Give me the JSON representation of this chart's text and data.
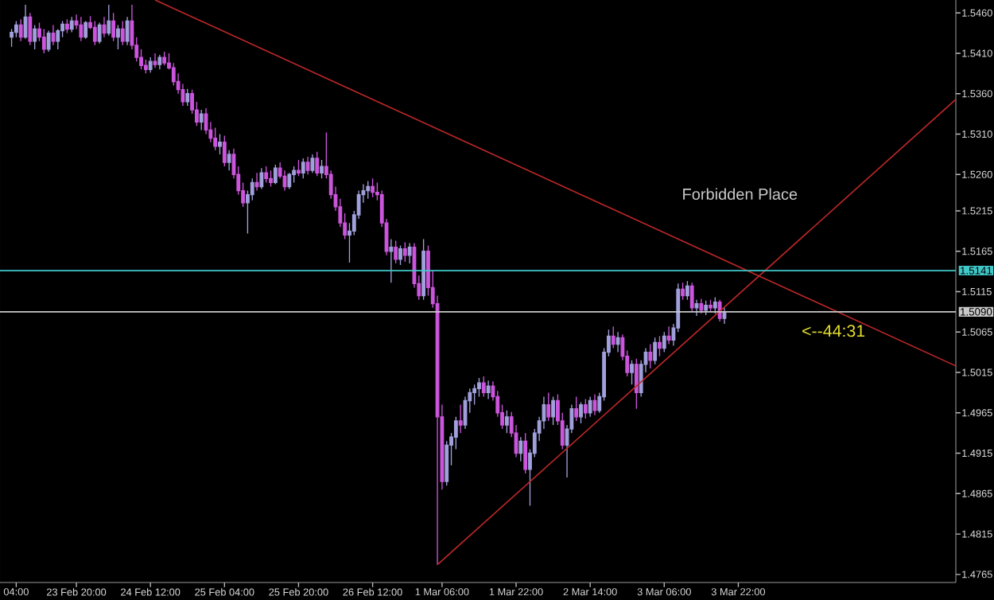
{
  "chart_data": {
    "type": "candlestick",
    "categories": [
      null,
      "04:00",
      null,
      null,
      null,
      null,
      null,
      null,
      null,
      null,
      null,
      null,
      null,
      null,
      "23 Feb 20:00",
      null,
      null,
      null,
      null,
      null,
      null,
      null,
      null,
      null,
      null,
      null,
      null,
      null,
      null,
      null,
      "24 Feb 12:00",
      null,
      null,
      null,
      null,
      null,
      null,
      null,
      null,
      null,
      null,
      null,
      null,
      null,
      null,
      null,
      "25 Feb 04:00",
      null,
      null,
      null,
      null,
      null,
      null,
      null,
      null,
      null,
      null,
      null,
      null,
      null,
      null,
      null,
      "25 Feb 20:00",
      null,
      null,
      null,
      null,
      null,
      null,
      null,
      null,
      null,
      null,
      null,
      null,
      null,
      null,
      null,
      "26 Feb 12:00",
      null,
      null,
      null,
      null,
      null,
      null,
      null,
      null,
      null,
      null,
      null,
      null,
      null,
      null,
      "1 Mar 06:00",
      null,
      null,
      null,
      null,
      null,
      null,
      null,
      null,
      null,
      null,
      null,
      null,
      null,
      null,
      null,
      "1 Mar 22:00",
      null,
      null,
      null,
      null,
      null,
      null,
      null,
      null,
      null,
      null,
      null,
      null,
      null,
      null,
      null,
      "2 Mar 14:00",
      null,
      null,
      null,
      null,
      null,
      null,
      null,
      null,
      null,
      null,
      null,
      null,
      null,
      null,
      null,
      "3 Mar 06:00",
      null,
      null,
      null,
      null,
      null,
      null,
      null,
      null,
      null,
      null,
      null,
      null,
      null,
      null,
      null,
      "3 Mar 22:00",
      null,
      null,
      null,
      null,
      null,
      null,
      null,
      null,
      null,
      null,
      null,
      null,
      null,
      null,
      null,
      null,
      null,
      null,
      null,
      null,
      null,
      null,
      null,
      null,
      null,
      null,
      null,
      null,
      null,
      null,
      null,
      null,
      null,
      null,
      null,
      null,
      null,
      null,
      null,
      null,
      null,
      null,
      null,
      null,
      null,
      null,
      null
    ],
    "ylim": [
      1.4755,
      1.5476
    ],
    "yticks": [
      {
        "value": 1.4765,
        "label": "1.4765"
      },
      {
        "value": 1.4815,
        "label": "1.4815"
      },
      {
        "value": 1.4865,
        "label": "1.4865"
      },
      {
        "value": 1.4915,
        "label": "1.4915"
      },
      {
        "value": 1.4965,
        "label": "1.4965"
      },
      {
        "value": 1.5015,
        "label": "1.5015"
      },
      {
        "value": 1.5065,
        "label": "1.5065"
      },
      {
        "value": 1.5115,
        "label": "1.5115"
      },
      {
        "value": 1.5165,
        "label": "1.5165"
      },
      {
        "value": 1.5215,
        "label": "1.5215"
      },
      {
        "value": 1.526,
        "label": "1.5260"
      },
      {
        "value": 1.531,
        "label": "1.5310"
      },
      {
        "value": 1.536,
        "label": "1.5360"
      },
      {
        "value": 1.541,
        "label": "1.5410"
      },
      {
        "value": 1.546,
        "label": "1.5460"
      }
    ],
    "series": [
      {
        "ohlc": [
          [
            1.543,
            1.544,
            1.5418,
            1.5436
          ],
          [
            1.5436,
            1.545,
            1.543,
            1.5445
          ],
          [
            1.5445,
            1.5452,
            1.5425,
            1.543
          ],
          [
            1.543,
            1.547,
            1.5428,
            1.5455
          ],
          [
            1.5455,
            1.546,
            1.542,
            1.5425
          ],
          [
            1.5425,
            1.5445,
            1.5415,
            1.544
          ],
          [
            1.544,
            1.5448,
            1.5425,
            1.543
          ],
          [
            1.543,
            1.544,
            1.541,
            1.5415
          ],
          [
            1.5415,
            1.5438,
            1.5412,
            1.5435
          ],
          [
            1.5435,
            1.5445,
            1.542,
            1.5425
          ],
          [
            1.5425,
            1.544,
            1.5415,
            1.5438
          ],
          [
            1.5438,
            1.545,
            1.543,
            1.5446
          ],
          [
            1.5446,
            1.5452,
            1.5435,
            1.544
          ],
          [
            1.544,
            1.5455,
            1.5436,
            1.545
          ],
          [
            1.545,
            1.5458,
            1.544,
            1.5445
          ],
          [
            1.5445,
            1.5455,
            1.5425,
            1.543
          ],
          [
            1.543,
            1.545,
            1.5428,
            1.5448
          ],
          [
            1.5448,
            1.5456,
            1.544,
            1.5442
          ],
          [
            1.5442,
            1.545,
            1.542,
            1.5425
          ],
          [
            1.5425,
            1.5448,
            1.5422,
            1.5445
          ],
          [
            1.5445,
            1.5455,
            1.543,
            1.5435
          ],
          [
            1.5435,
            1.547,
            1.5432,
            1.545
          ],
          [
            1.545,
            1.546,
            1.5425,
            1.543
          ],
          [
            1.543,
            1.5445,
            1.5415,
            1.544
          ],
          [
            1.544,
            1.545,
            1.542,
            1.5425
          ],
          [
            1.5425,
            1.5455,
            1.542,
            1.545
          ],
          [
            1.545,
            1.547,
            1.5415,
            1.542
          ],
          [
            1.542,
            1.543,
            1.54,
            1.5405
          ],
          [
            1.5405,
            1.5415,
            1.539,
            1.5395
          ],
          [
            1.5395,
            1.5402,
            1.5385,
            1.539
          ],
          [
            1.539,
            1.5405,
            1.5386,
            1.54
          ],
          [
            1.54,
            1.541,
            1.5392,
            1.5396
          ],
          [
            1.5396,
            1.5408,
            1.539,
            1.5405
          ],
          [
            1.5405,
            1.5412,
            1.5395,
            1.5398
          ],
          [
            1.5398,
            1.541,
            1.539,
            1.5392
          ],
          [
            1.5392,
            1.5398,
            1.537,
            1.5375
          ],
          [
            1.5375,
            1.5385,
            1.536,
            1.5365
          ],
          [
            1.5365,
            1.5372,
            1.5345,
            1.535
          ],
          [
            1.535,
            1.5366,
            1.5345,
            1.536
          ],
          [
            1.536,
            1.5365,
            1.5335,
            1.534
          ],
          [
            1.534,
            1.535,
            1.532,
            1.5325
          ],
          [
            1.5325,
            1.534,
            1.5315,
            1.5335
          ],
          [
            1.5335,
            1.5342,
            1.531,
            1.5315
          ],
          [
            1.5315,
            1.5325,
            1.53,
            1.5305
          ],
          [
            1.5305,
            1.5318,
            1.529,
            1.5295
          ],
          [
            1.5295,
            1.531,
            1.5285,
            1.53
          ],
          [
            1.53,
            1.5308,
            1.527,
            1.5275
          ],
          [
            1.5275,
            1.529,
            1.5265,
            1.5285
          ],
          [
            1.5285,
            1.5292,
            1.5255,
            1.526
          ],
          [
            1.526,
            1.527,
            1.5235,
            1.524
          ],
          [
            1.524,
            1.525,
            1.522,
            1.5225
          ],
          [
            1.5225,
            1.524,
            1.5187,
            1.5235
          ],
          [
            1.5235,
            1.5255,
            1.5228,
            1.525
          ],
          [
            1.525,
            1.5262,
            1.524,
            1.5245
          ],
          [
            1.5245,
            1.5268,
            1.5242,
            1.5262
          ],
          [
            1.5262,
            1.527,
            1.525,
            1.5255
          ],
          [
            1.5255,
            1.5265,
            1.5245,
            1.525
          ],
          [
            1.525,
            1.5272,
            1.5248,
            1.5268
          ],
          [
            1.5268,
            1.5275,
            1.5255,
            1.5258
          ],
          [
            1.5258,
            1.5265,
            1.524,
            1.5245
          ],
          [
            1.5245,
            1.5262,
            1.5242,
            1.526
          ],
          [
            1.526,
            1.527,
            1.525,
            1.5265
          ],
          [
            1.5265,
            1.5278,
            1.5258,
            1.5262
          ],
          [
            1.5262,
            1.528,
            1.5255,
            1.5275
          ],
          [
            1.5275,
            1.5282,
            1.526,
            1.5265
          ],
          [
            1.5265,
            1.5285,
            1.5262,
            1.528
          ],
          [
            1.528,
            1.5288,
            1.5258,
            1.5262
          ],
          [
            1.5262,
            1.5278,
            1.5255,
            1.527
          ],
          [
            1.527,
            1.5312,
            1.5255,
            1.526
          ],
          [
            1.526,
            1.5265,
            1.523,
            1.5235
          ],
          [
            1.5235,
            1.5245,
            1.5215,
            1.522
          ],
          [
            1.522,
            1.523,
            1.5195,
            1.52
          ],
          [
            1.52,
            1.5212,
            1.518,
            1.5185
          ],
          [
            1.5185,
            1.52,
            1.5151,
            1.519
          ],
          [
            1.519,
            1.5215,
            1.5185,
            1.521
          ],
          [
            1.521,
            1.524,
            1.5205,
            1.5235
          ],
          [
            1.5235,
            1.5248,
            1.5225,
            1.524
          ],
          [
            1.524,
            1.5252,
            1.523,
            1.5245
          ],
          [
            1.5245,
            1.5255,
            1.5232,
            1.5238
          ],
          [
            1.5238,
            1.525,
            1.5228,
            1.5235
          ],
          [
            1.5235,
            1.524,
            1.5195,
            1.52
          ],
          [
            1.52,
            1.5205,
            1.516,
            1.5165
          ],
          [
            1.5165,
            1.518,
            1.5126,
            1.517
          ],
          [
            1.517,
            1.5178,
            1.515,
            1.5155
          ],
          [
            1.5155,
            1.5172,
            1.5148,
            1.5168
          ],
          [
            1.5168,
            1.5176,
            1.5152,
            1.516
          ],
          [
            1.516,
            1.5175,
            1.515,
            1.517
          ],
          [
            1.517,
            1.5175,
            1.512,
            1.5125
          ],
          [
            1.5125,
            1.5135,
            1.5105,
            1.511
          ],
          [
            1.511,
            1.518,
            1.5105,
            1.5165
          ],
          [
            1.5165,
            1.5172,
            1.511,
            1.512
          ],
          [
            1.512,
            1.514,
            1.5095,
            1.51
          ],
          [
            1.51,
            1.511,
            1.4777,
            1.496
          ],
          [
            1.496,
            1.4975,
            1.487,
            1.488
          ],
          [
            1.488,
            1.493,
            1.4875,
            1.4925
          ],
          [
            1.4925,
            1.494,
            1.49,
            1.4935
          ],
          [
            1.4935,
            1.496,
            1.492,
            1.4955
          ],
          [
            1.4955,
            1.4975,
            1.494,
            1.495
          ],
          [
            1.495,
            1.4985,
            1.4945,
            1.498
          ],
          [
            1.498,
            1.4995,
            1.4965,
            1.499
          ],
          [
            1.499,
            1.5,
            1.4975,
            1.4995
          ],
          [
            1.4995,
            1.5008,
            1.4985,
            1.5002
          ],
          [
            1.5002,
            1.501,
            1.4985,
            1.499
          ],
          [
            1.499,
            1.5005,
            1.4982,
            1.4998
          ],
          [
            1.4998,
            1.5004,
            1.498,
            1.4985
          ],
          [
            1.4985,
            1.4992,
            1.496,
            1.4965
          ],
          [
            1.4965,
            1.4975,
            1.4945,
            1.495
          ],
          [
            1.495,
            1.4968,
            1.494,
            1.496
          ],
          [
            1.496,
            1.4966,
            1.4935,
            1.494
          ],
          [
            1.494,
            1.495,
            1.491,
            1.4915
          ],
          [
            1.4915,
            1.4935,
            1.4905,
            1.493
          ],
          [
            1.493,
            1.494,
            1.489,
            1.4895
          ],
          [
            1.4895,
            1.492,
            1.485,
            1.4915
          ],
          [
            1.4915,
            1.4945,
            1.491,
            1.494
          ],
          [
            1.494,
            1.496,
            1.493,
            1.4955
          ],
          [
            1.4955,
            1.4985,
            1.4945,
            1.4975
          ],
          [
            1.4975,
            1.499,
            1.4955,
            1.496
          ],
          [
            1.496,
            1.4985,
            1.495,
            1.498
          ],
          [
            1.498,
            1.4988,
            1.495,
            1.4955
          ],
          [
            1.4955,
            1.4965,
            1.492,
            1.4925
          ],
          [
            1.4925,
            1.495,
            1.4885,
            1.4945
          ],
          [
            1.4945,
            1.4975,
            1.494,
            1.497
          ],
          [
            1.497,
            1.4985,
            1.4955,
            1.496
          ],
          [
            1.496,
            1.4978,
            1.4952,
            1.4975
          ],
          [
            1.4975,
            1.4982,
            1.4958,
            1.4965
          ],
          [
            1.4965,
            1.4985,
            1.496,
            1.498
          ],
          [
            1.498,
            1.4988,
            1.4962,
            1.4968
          ],
          [
            1.4968,
            1.499,
            1.4965,
            1.4985
          ],
          [
            1.4985,
            1.5045,
            1.498,
            1.504
          ],
          [
            1.504,
            1.5068,
            1.5035,
            1.506
          ],
          [
            1.506,
            1.5072,
            1.5045,
            1.505
          ],
          [
            1.505,
            1.5065,
            1.504,
            1.5058
          ],
          [
            1.5058,
            1.5062,
            1.503,
            1.5035
          ],
          [
            1.5035,
            1.5042,
            1.501,
            1.5015
          ],
          [
            1.5015,
            1.503,
            1.5,
            1.5025
          ],
          [
            1.5025,
            1.5032,
            1.497,
            1.499
          ],
          [
            1.499,
            1.503,
            1.4985,
            1.5025
          ],
          [
            1.5025,
            1.5045,
            1.5015,
            1.504
          ],
          [
            1.504,
            1.505,
            1.502,
            1.503
          ],
          [
            1.503,
            1.5058,
            1.5025,
            1.5052
          ],
          [
            1.5052,
            1.506,
            1.5035,
            1.5045
          ],
          [
            1.5045,
            1.5065,
            1.504,
            1.506
          ],
          [
            1.506,
            1.5072,
            1.505,
            1.5055
          ],
          [
            1.5055,
            1.5075,
            1.5048,
            1.507
          ],
          [
            1.507,
            1.5125,
            1.5065,
            1.5118
          ],
          [
            1.5118,
            1.5126,
            1.5105,
            1.511
          ],
          [
            1.511,
            1.5128,
            1.5105,
            1.5122
          ],
          [
            1.5122,
            1.5126,
            1.509,
            1.5095
          ],
          [
            1.5095,
            1.5105,
            1.5085,
            1.51
          ],
          [
            1.51,
            1.5106,
            1.5088,
            1.5092
          ],
          [
            1.5092,
            1.5104,
            1.5086,
            1.5098
          ],
          [
            1.5098,
            1.5105,
            1.509,
            1.5095
          ],
          [
            1.5095,
            1.5108,
            1.5088,
            1.5102
          ],
          [
            1.5102,
            1.5105,
            1.5078,
            1.5082
          ],
          [
            1.5082,
            1.5095,
            1.5075,
            1.509
          ],
          null,
          null,
          null,
          null,
          null,
          null,
          null,
          null,
          null,
          null,
          null,
          null,
          null,
          null,
          null,
          null,
          null,
          null,
          null,
          null,
          null,
          null,
          null,
          null,
          null,
          null,
          null,
          null,
          null,
          null,
          null,
          null,
          null,
          null,
          null,
          null,
          null,
          null,
          null,
          null,
          null,
          null,
          null,
          null,
          null,
          null,
          null,
          null,
          null,
          null
        ],
        "colors": [
          "#a0a0dc",
          "#a0a0dc",
          "#cc55dd",
          "#a0a0dc",
          "#cc55dd",
          "#a0a0dc",
          "#cc55dd",
          "#cc55dd",
          "#a0a0dc",
          "#cc55dd",
          "#a0a0dc",
          "#a0a0dc",
          "#cc55dd",
          "#a0a0dc",
          "#cc55dd",
          "#cc55dd",
          "#a0a0dc",
          "#cc55dd",
          "#cc55dd",
          "#a0a0dc",
          "#cc55dd",
          "#a0a0dc",
          "#cc55dd",
          "#a0a0dc",
          "#cc55dd",
          "#a0a0dc",
          "#cc55dd",
          "#cc55dd",
          "#cc55dd",
          "#cc55dd",
          "#a0a0dc",
          "#cc55dd",
          "#a0a0dc",
          "#cc55dd",
          "#cc55dd",
          "#cc55dd",
          "#cc55dd",
          "#cc55dd",
          "#a0a0dc",
          "#cc55dd",
          "#cc55dd",
          "#a0a0dc",
          "#cc55dd",
          "#cc55dd",
          "#cc55dd",
          "#a0a0dc",
          "#cc55dd",
          "#a0a0dc",
          "#cc55dd",
          "#cc55dd",
          "#cc55dd",
          "#a0a0dc",
          "#a0a0dc",
          "#cc55dd",
          "#a0a0dc",
          "#cc55dd",
          "#cc55dd",
          "#a0a0dc",
          "#cc55dd",
          "#cc55dd",
          "#a0a0dc",
          "#a0a0dc",
          "#cc55dd",
          "#a0a0dc",
          "#cc55dd",
          "#a0a0dc",
          "#cc55dd",
          "#a0a0dc",
          "#cc55dd",
          "#cc55dd",
          "#cc55dd",
          "#cc55dd",
          "#cc55dd",
          "#a0a0dc",
          "#a0a0dc",
          "#a0a0dc",
          "#a0a0dc",
          "#a0a0dc",
          "#cc55dd",
          "#cc55dd",
          "#cc55dd",
          "#cc55dd",
          "#a0a0dc",
          "#cc55dd",
          "#a0a0dc",
          "#cc55dd",
          "#a0a0dc",
          "#cc55dd",
          "#cc55dd",
          "#a0a0dc",
          "#cc55dd",
          "#cc55dd",
          "#cc55dd",
          "#cc55dd",
          "#a0a0dc",
          "#a0a0dc",
          "#a0a0dc",
          "#cc55dd",
          "#a0a0dc",
          "#a0a0dc",
          "#a0a0dc",
          "#a0a0dc",
          "#cc55dd",
          "#a0a0dc",
          "#cc55dd",
          "#cc55dd",
          "#cc55dd",
          "#a0a0dc",
          "#cc55dd",
          "#cc55dd",
          "#a0a0dc",
          "#cc55dd",
          "#a0a0dc",
          "#a0a0dc",
          "#a0a0dc",
          "#a0a0dc",
          "#cc55dd",
          "#a0a0dc",
          "#cc55dd",
          "#cc55dd",
          "#a0a0dc",
          "#a0a0dc",
          "#cc55dd",
          "#a0a0dc",
          "#cc55dd",
          "#a0a0dc",
          "#cc55dd",
          "#a0a0dc",
          "#a0a0dc",
          "#a0a0dc",
          "#cc55dd",
          "#a0a0dc",
          "#cc55dd",
          "#cc55dd",
          "#a0a0dc",
          "#cc55dd",
          "#a0a0dc",
          "#a0a0dc",
          "#cc55dd",
          "#a0a0dc",
          "#cc55dd",
          "#a0a0dc",
          "#cc55dd",
          "#a0a0dc",
          "#a0a0dc",
          "#cc55dd",
          "#a0a0dc",
          "#cc55dd",
          "#a0a0dc",
          "#cc55dd",
          "#a0a0dc",
          "#cc55dd",
          "#a0a0dc",
          "#cc55dd",
          "#a0a0dc",
          null,
          null,
          null,
          null,
          null,
          null,
          null,
          null,
          null,
          null,
          null,
          null,
          null,
          null,
          null,
          null,
          null,
          null,
          null,
          null,
          null,
          null,
          null,
          null,
          null,
          null,
          null,
          null,
          null,
          null,
          null,
          null,
          null,
          null,
          null,
          null,
          null,
          null,
          null,
          null,
          null,
          null,
          null,
          null,
          null,
          null,
          null,
          null,
          null,
          null
        ]
      },
      {
        "type": "line",
        "color": "#c02828",
        "values": [
          null,
          null,
          null,
          null,
          null,
          null,
          null,
          null,
          null,
          null,
          null,
          null,
          null,
          null,
          null,
          null,
          null,
          null,
          null,
          null,
          null,
          null,
          null,
          null,
          null,
          null,
          null,
          null,
          null,
          null,
          null,
          1.5476,
          null,
          null,
          null,
          null,
          null,
          null,
          null,
          null,
          null,
          null,
          null,
          null,
          null,
          null,
          null,
          null,
          null,
          null,
          null,
          null,
          null,
          null,
          null,
          null,
          null,
          null,
          null,
          null,
          null,
          null,
          null,
          null,
          null,
          null,
          null,
          null,
          null,
          null,
          null,
          null,
          null,
          null,
          null,
          null,
          null,
          null,
          null,
          null,
          null,
          null,
          null,
          null,
          null,
          null,
          null,
          null,
          null,
          null,
          null,
          null,
          null,
          null,
          null,
          null,
          null,
          null,
          null,
          null,
          null,
          null,
          null,
          null,
          null,
          null,
          null,
          null,
          null,
          null,
          null,
          null,
          null,
          null,
          null,
          null,
          null,
          null,
          null,
          null,
          null,
          null,
          null,
          null,
          null,
          null,
          null,
          null,
          null,
          null,
          null,
          null,
          null,
          null,
          null,
          null,
          null,
          null,
          null,
          null,
          null,
          null,
          null,
          null,
          null,
          null,
          null,
          null,
          null,
          null,
          null,
          null,
          null,
          null,
          null,
          null,
          null,
          null,
          null,
          null,
          null,
          null,
          null,
          null,
          null,
          null,
          null,
          null,
          null,
          null,
          null,
          null,
          null,
          null,
          null,
          null,
          null,
          null,
          null,
          null,
          null,
          null,
          null,
          null,
          null,
          null,
          null,
          null,
          null,
          null,
          null,
          null,
          null,
          null,
          null,
          null,
          null,
          null,
          null,
          null,
          null,
          null,
          null,
          null,
          1.5023
        ]
      },
      {
        "type": "line",
        "color": "#c02828",
        "values": [
          null,
          null,
          null,
          null,
          null,
          null,
          null,
          null,
          null,
          null,
          null,
          null,
          null,
          null,
          null,
          null,
          null,
          null,
          null,
          null,
          null,
          null,
          null,
          null,
          null,
          null,
          null,
          null,
          null,
          null,
          null,
          null,
          null,
          null,
          null,
          null,
          null,
          null,
          null,
          null,
          null,
          null,
          null,
          null,
          null,
          null,
          null,
          null,
          null,
          null,
          null,
          null,
          null,
          null,
          null,
          null,
          null,
          null,
          null,
          null,
          null,
          null,
          null,
          null,
          null,
          null,
          null,
          null,
          null,
          null,
          null,
          null,
          null,
          null,
          null,
          null,
          null,
          null,
          null,
          null,
          null,
          null,
          null,
          null,
          null,
          null,
          null,
          null,
          null,
          null,
          null,
          null,
          1.4777,
          null,
          null,
          null,
          null,
          null,
          null,
          null,
          null,
          null,
          null,
          null,
          null,
          null,
          null,
          null,
          null,
          null,
          null,
          null,
          null,
          null,
          null,
          null,
          null,
          null,
          null,
          null,
          null,
          null,
          null,
          null,
          null,
          null,
          null,
          null,
          null,
          null,
          null,
          null,
          null,
          null,
          null,
          null,
          null,
          null,
          null,
          null,
          null,
          null,
          null,
          null,
          null,
          null,
          null,
          null,
          null,
          null,
          null,
          null,
          null,
          null,
          null,
          null,
          null,
          null,
          null,
          null,
          null,
          null,
          null,
          null,
          null,
          null,
          null,
          null,
          null,
          null,
          null,
          null,
          null,
          null,
          null,
          null,
          null,
          null,
          null,
          null,
          null,
          null,
          null,
          null,
          null,
          null,
          null,
          null,
          null,
          null,
          null,
          null,
          null,
          null,
          null,
          null,
          null,
          null,
          null,
          null,
          null,
          null,
          null,
          null,
          1.5353
        ]
      }
    ],
    "ref_lines": [
      {
        "axis": "y",
        "value": 1.5141,
        "label": "1.5141",
        "color": "#40c8c8"
      },
      {
        "axis": "y",
        "value": 1.509,
        "label": "1.5090",
        "color": "#c8c8c8"
      }
    ],
    "annotations": [
      "Forbidden Place",
      "<--44:31"
    ]
  }
}
